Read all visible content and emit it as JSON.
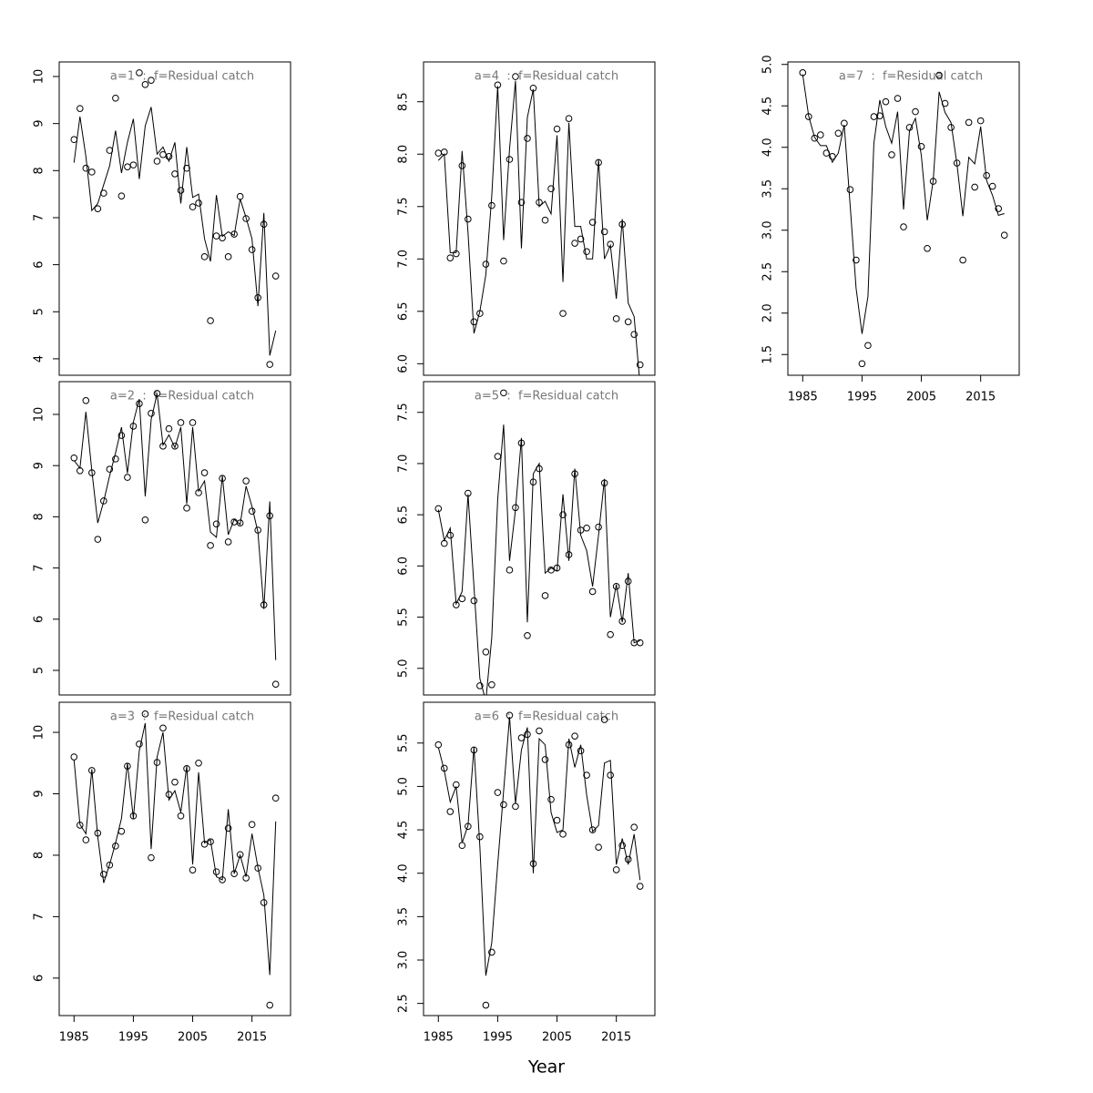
{
  "chart_data": [
    {
      "type": "line",
      "title": "a=1  :  f=Residual catch",
      "x": [
        1985,
        1986,
        1987,
        1988,
        1989,
        1990,
        1991,
        1992,
        1993,
        1994,
        1995,
        1996,
        1997,
        1998,
        1999,
        2000,
        2001,
        2002,
        2003,
        2004,
        2005,
        2006,
        2007,
        2008,
        2009,
        2010,
        2011,
        2012,
        2013,
        2014,
        2015,
        2016,
        2017,
        2018,
        2019
      ],
      "xlim": [
        1982.5,
        2021.5
      ],
      "ylim": [
        3.65,
        10.31
      ],
      "yticks": [
        4,
        5,
        6,
        7,
        8,
        9,
        10
      ],
      "series": [
        {
          "type": "scatter",
          "color": "#000000",
          "values": [
            8.66,
            9.32,
            8.05,
            7.97,
            7.19,
            7.52,
            8.43,
            9.54,
            7.46,
            8.08,
            8.12,
            10.08,
            9.83,
            9.92,
            8.2,
            8.34,
            8.3,
            7.93,
            7.58,
            8.05,
            7.23,
            7.31,
            6.17,
            4.81,
            6.61,
            6.57,
            6.17,
            6.65,
            7.45,
            6.98,
            6.32,
            5.3,
            6.86,
            3.88,
            5.76
          ]
        },
        {
          "type": "line",
          "color": "#000000",
          "values": [
            8.17,
            9.15,
            8.3,
            7.15,
            7.3,
            7.7,
            8.1,
            8.85,
            7.95,
            8.6,
            9.1,
            7.82,
            8.95,
            9.35,
            8.35,
            8.5,
            8.2,
            8.6,
            7.3,
            8.5,
            7.43,
            7.5,
            6.55,
            6.07,
            7.48,
            6.6,
            6.7,
            6.62,
            7.4,
            7.0,
            6.55,
            5.12,
            7.1,
            4.07,
            4.6
          ]
        }
      ]
    },
    {
      "type": "line",
      "title": "a=2  :  f=Residual catch",
      "x": [
        1985,
        1986,
        1987,
        1988,
        1989,
        1990,
        1991,
        1992,
        1993,
        1994,
        1995,
        1996,
        1997,
        1998,
        1999,
        2000,
        2001,
        2002,
        2003,
        2004,
        2005,
        2006,
        2007,
        2008,
        2009,
        2010,
        2011,
        2012,
        2013,
        2014,
        2015,
        2016,
        2017,
        2018,
        2019
      ],
      "xlim": [
        1982.5,
        2021.5
      ],
      "ylim": [
        4.52,
        10.64
      ],
      "yticks": [
        5,
        6,
        7,
        8,
        9,
        10
      ],
      "series": [
        {
          "type": "scatter",
          "color": "#000000",
          "values": [
            9.15,
            8.9,
            10.27,
            8.86,
            7.56,
            8.31,
            8.93,
            9.13,
            9.59,
            8.77,
            9.77,
            10.21,
            7.94,
            10.02,
            10.41,
            9.38,
            9.72,
            9.38,
            9.84,
            8.17,
            9.84,
            8.47,
            8.86,
            7.44,
            7.86,
            8.75,
            7.51,
            7.9,
            7.88,
            8.7,
            8.11,
            7.74,
            6.28,
            8.02,
            4.73
          ]
        },
        {
          "type": "line",
          "color": "#000000",
          "values": [
            9.1,
            8.95,
            10.05,
            8.9,
            7.88,
            8.3,
            8.8,
            9.25,
            9.75,
            8.85,
            9.85,
            10.3,
            8.4,
            9.9,
            10.4,
            9.4,
            9.6,
            9.35,
            9.75,
            8.25,
            9.75,
            8.5,
            8.7,
            7.7,
            7.6,
            8.8,
            7.65,
            7.95,
            7.85,
            8.6,
            8.2,
            7.7,
            6.2,
            8.3,
            5.2
          ]
        }
      ]
    },
    {
      "type": "line",
      "title": "a=3  :  f=Residual catch",
      "x": [
        1985,
        1986,
        1987,
        1988,
        1989,
        1990,
        1991,
        1992,
        1993,
        1994,
        1995,
        1996,
        1997,
        1998,
        1999,
        2000,
        2001,
        2002,
        2003,
        2004,
        2005,
        2006,
        2007,
        2008,
        2009,
        2010,
        2011,
        2012,
        2013,
        2014,
        2015,
        2016,
        2017,
        2018,
        2019
      ],
      "xlim": [
        1982.5,
        2021.5
      ],
      "xticks": [
        1985,
        1995,
        2005,
        2015
      ],
      "ylim": [
        5.39,
        10.49
      ],
      "yticks": [
        6,
        7,
        8,
        9,
        10
      ],
      "series": [
        {
          "type": "scatter",
          "color": "#000000",
          "values": [
            9.6,
            8.49,
            8.25,
            9.38,
            8.36,
            7.69,
            7.84,
            8.15,
            8.39,
            9.45,
            8.64,
            9.81,
            10.3,
            7.96,
            9.51,
            10.07,
            8.99,
            9.19,
            8.64,
            9.41,
            7.76,
            9.5,
            8.18,
            8.22,
            7.73,
            7.6,
            8.44,
            7.7,
            8.01,
            7.63,
            8.5,
            7.79,
            7.23,
            5.56,
            8.93
          ]
        },
        {
          "type": "line",
          "color": "#000000",
          "values": [
            9.55,
            8.5,
            8.35,
            9.4,
            8.3,
            7.55,
            7.85,
            8.2,
            8.6,
            9.5,
            8.6,
            9.7,
            10.15,
            8.1,
            9.6,
            10.0,
            8.9,
            9.05,
            8.7,
            9.45,
            7.85,
            9.35,
            8.2,
            8.25,
            7.65,
            7.6,
            8.75,
            7.7,
            8.0,
            7.65,
            8.35,
            7.8,
            7.35,
            6.05,
            8.55
          ]
        }
      ]
    },
    {
      "type": "line",
      "title": "a=4  :  f=Residual catch",
      "x": [
        1985,
        1986,
        1987,
        1988,
        1989,
        1990,
        1991,
        1992,
        1993,
        1994,
        1995,
        1996,
        1997,
        1998,
        1999,
        2000,
        2001,
        2002,
        2003,
        2004,
        2005,
        2006,
        2007,
        2008,
        2009,
        2010,
        2011,
        2012,
        2013,
        2014,
        2015,
        2016,
        2017,
        2018,
        2019
      ],
      "xlim": [
        1982.5,
        2021.5
      ],
      "ylim": [
        5.89,
        8.88
      ],
      "yticks": [
        {
          "value": 6,
          "label": "6.0"
        },
        6.5,
        {
          "value": 7,
          "label": "7.0"
        },
        7.5,
        {
          "value": 8,
          "label": "8.0"
        },
        8.5
      ],
      "series": [
        {
          "type": "scatter",
          "color": "#000000",
          "values": [
            8.01,
            8.02,
            7.01,
            7.05,
            7.89,
            7.38,
            6.4,
            6.48,
            6.95,
            7.51,
            8.66,
            6.98,
            7.95,
            8.74,
            7.54,
            8.15,
            8.63,
            7.54,
            7.37,
            7.67,
            8.24,
            6.48,
            8.34,
            7.15,
            7.19,
            7.07,
            7.35,
            7.92,
            7.26,
            7.14,
            6.43,
            7.33,
            6.4,
            6.28,
            5.99
          ]
        },
        {
          "type": "line",
          "color": "#000000",
          "values": [
            7.94,
            8.0,
            7.06,
            7.06,
            8.03,
            7.25,
            6.29,
            6.5,
            6.85,
            7.6,
            8.65,
            7.18,
            8.05,
            8.7,
            7.1,
            8.35,
            8.62,
            7.5,
            7.55,
            7.43,
            8.18,
            6.78,
            8.3,
            7.31,
            7.31,
            7.0,
            7.0,
            7.95,
            7.0,
            7.13,
            6.62,
            7.38,
            6.58,
            6.45,
            5.8
          ]
        }
      ]
    },
    {
      "type": "line",
      "title": "a=5  :  f=Residual catch",
      "x": [
        1985,
        1986,
        1987,
        1988,
        1989,
        1990,
        1991,
        1992,
        1993,
        1994,
        1995,
        1996,
        1997,
        1998,
        1999,
        2000,
        2001,
        2002,
        2003,
        2004,
        2005,
        2006,
        2007,
        2008,
        2009,
        2010,
        2011,
        2012,
        2013,
        2014,
        2015,
        2016,
        2017,
        2018,
        2019
      ],
      "xlim": [
        1982.5,
        2021.5
      ],
      "ylim": [
        4.74,
        7.8
      ],
      "yticks": [
        {
          "value": 5,
          "label": "5.0"
        },
        5.5,
        {
          "value": 6,
          "label": "6.0"
        },
        6.5,
        {
          "value": 7,
          "label": "7.0"
        },
        7.5
      ],
      "series": [
        {
          "type": "scatter",
          "color": "#000000",
          "values": [
            6.56,
            6.22,
            6.3,
            5.62,
            5.68,
            6.71,
            5.66,
            4.83,
            5.16,
            4.84,
            7.07,
            7.69,
            5.96,
            6.57,
            7.2,
            5.32,
            6.82,
            6.95,
            5.71,
            5.96,
            5.98,
            6.5,
            6.11,
            6.9,
            6.35,
            6.37,
            5.75,
            6.38,
            6.81,
            5.33,
            5.8,
            5.46,
            5.85,
            5.25,
            5.25
          ]
        },
        {
          "type": "line",
          "color": "#000000",
          "values": [
            6.55,
            6.25,
            6.37,
            5.63,
            5.75,
            6.7,
            5.8,
            4.9,
            4.68,
            5.3,
            6.65,
            7.38,
            6.05,
            6.55,
            7.25,
            5.45,
            6.9,
            7.0,
            5.93,
            5.98,
            5.95,
            6.7,
            6.05,
            6.95,
            6.3,
            6.15,
            5.8,
            6.3,
            6.85,
            5.5,
            5.82,
            5.45,
            5.93,
            5.25,
            5.27
          ]
        }
      ]
    },
    {
      "type": "line",
      "title": "a=6  :  f=Residual catch",
      "xlabel": "Year",
      "x": [
        1985,
        1986,
        1987,
        1988,
        1989,
        1990,
        1991,
        1992,
        1993,
        1994,
        1995,
        1996,
        1997,
        1998,
        1999,
        2000,
        2001,
        2002,
        2003,
        2004,
        2005,
        2006,
        2007,
        2008,
        2009,
        2010,
        2011,
        2012,
        2013,
        2014,
        2015,
        2016,
        2017,
        2018,
        2019
      ],
      "xlim": [
        1982.5,
        2021.5
      ],
      "xticks": [
        1985,
        1995,
        2005,
        2015
      ],
      "ylim": [
        2.36,
        5.97
      ],
      "yticks": [
        2.5,
        {
          "value": 3,
          "label": "3.0"
        },
        3.5,
        {
          "value": 4,
          "label": "4.0"
        },
        4.5,
        {
          "value": 5,
          "label": "5.0"
        },
        5.5
      ],
      "series": [
        {
          "type": "scatter",
          "color": "#000000",
          "values": [
            5.48,
            5.21,
            4.71,
            5.02,
            4.32,
            4.54,
            5.42,
            4.42,
            2.48,
            3.09,
            4.93,
            4.79,
            5.82,
            4.77,
            5.56,
            5.6,
            4.11,
            5.64,
            5.31,
            4.85,
            4.61,
            4.45,
            5.48,
            5.58,
            5.41,
            5.13,
            4.5,
            4.3,
            5.77,
            5.13,
            4.04,
            4.32,
            4.16,
            4.53,
            3.85
          ]
        },
        {
          "type": "line",
          "color": "#000000",
          "values": [
            5.45,
            5.18,
            4.82,
            5.0,
            4.35,
            4.55,
            5.45,
            4.3,
            2.82,
            3.2,
            4.1,
            4.95,
            5.8,
            4.8,
            5.42,
            5.68,
            4.0,
            5.55,
            5.48,
            4.7,
            4.47,
            4.5,
            5.55,
            5.22,
            5.48,
            4.9,
            4.48,
            4.55,
            5.27,
            5.3,
            4.1,
            4.4,
            4.1,
            4.45,
            3.92
          ]
        }
      ]
    },
    {
      "type": "line",
      "title": "a=7  :  f=Residual catch",
      "x": [
        1985,
        1986,
        1987,
        1988,
        1989,
        1990,
        1991,
        1992,
        1993,
        1994,
        1995,
        1996,
        1997,
        1998,
        1999,
        2000,
        2001,
        2002,
        2003,
        2004,
        2005,
        2006,
        2007,
        2008,
        2009,
        2010,
        2011,
        2012,
        2013,
        2014,
        2015,
        2016,
        2017,
        2018,
        2019
      ],
      "xlim": [
        1982.5,
        2021.5
      ],
      "xticks": [
        1985,
        1995,
        2005,
        2015
      ],
      "ylim": [
        1.25,
        5.03
      ],
      "yticks": [
        1.5,
        {
          "value": 2,
          "label": "2.0"
        },
        2.5,
        {
          "value": 3,
          "label": "3.0"
        },
        3.5,
        {
          "value": 4,
          "label": "4.0"
        },
        4.5,
        {
          "value": 5,
          "label": "5.0"
        }
      ],
      "series": [
        {
          "type": "scatter",
          "color": "#000000",
          "values": [
            4.9,
            4.37,
            4.11,
            4.15,
            3.93,
            3.89,
            4.17,
            4.29,
            3.49,
            2.64,
            1.39,
            1.61,
            4.37,
            4.38,
            4.55,
            3.91,
            4.59,
            3.04,
            4.24,
            4.43,
            4.01,
            2.78,
            3.59,
            4.87,
            4.53,
            4.24,
            3.81,
            2.64,
            4.3,
            3.52,
            4.32,
            3.66,
            3.53,
            3.26,
            2.94
          ]
        },
        {
          "type": "line",
          "color": "#000000",
          "values": [
            4.88,
            4.38,
            4.12,
            4.02,
            4.02,
            3.82,
            3.93,
            4.27,
            3.3,
            2.3,
            1.75,
            2.2,
            4.05,
            4.57,
            4.25,
            4.05,
            4.43,
            3.25,
            4.2,
            4.35,
            3.9,
            3.12,
            3.6,
            4.67,
            4.42,
            4.3,
            3.8,
            3.17,
            3.88,
            3.8,
            4.25,
            3.6,
            3.42,
            3.18,
            3.2
          ]
        }
      ]
    }
  ]
}
